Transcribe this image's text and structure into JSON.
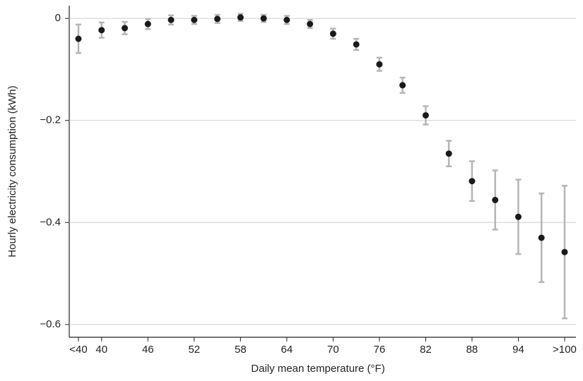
{
  "chart_data": {
    "type": "scatter",
    "xlabel": "Daily mean temperature (°F)",
    "ylabel": "Hourly electricity consumption (kWh)",
    "categories": [
      "<40",
      "40",
      null,
      "46",
      null,
      "52",
      null,
      "58",
      null,
      "64",
      null,
      "70",
      null,
      "76",
      null,
      "82",
      null,
      "88",
      null,
      "94",
      null,
      ">100"
    ],
    "values": [
      -0.04,
      -0.023,
      -0.019,
      -0.011,
      -0.003,
      -0.003,
      -0.001,
      0.002,
      0,
      -0.003,
      -0.011,
      -0.03,
      -0.051,
      -0.09,
      -0.131,
      -0.19,
      -0.265,
      -0.319,
      -0.356,
      -0.389,
      -0.43,
      -0.458
    ],
    "errors": [
      0.028,
      0.015,
      0.012,
      0.01,
      0.009,
      0.008,
      0.008,
      0.007,
      0.007,
      0.008,
      0.008,
      0.01,
      0.011,
      0.013,
      0.015,
      0.018,
      0.025,
      0.039,
      0.058,
      0.073,
      0.087,
      0.13
    ],
    "color": "#1a1a1a",
    "error_color": "#b5b5b5",
    "ylim": [
      -0.625,
      0.025
    ],
    "yticks": [
      0,
      {
        "value": -0.2,
        "label": "−0.2"
      },
      {
        "value": -0.4,
        "label": "−0.4"
      },
      {
        "value": -0.6,
        "label": "−0.6"
      }
    ],
    "grid": true
  }
}
